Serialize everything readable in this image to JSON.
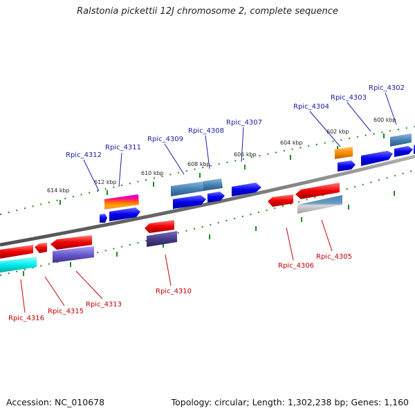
{
  "title": "Ralstonia pickettii 12J chromosome 2, complete sequence",
  "footer": {
    "accession": "Accession: NC_010678",
    "summary": "Topology: circular; Length: 1,302,238 bp; Genes: 1,160"
  },
  "kbp_labels": [
    "614 kbp",
    "612 kbp",
    "610 kbp",
    "608 kbp",
    "606 kbp",
    "604 kbp",
    "602 kbp",
    "600 kbp"
  ],
  "gene_labels_top": [
    "Rpic_4312",
    "Rpic_4311",
    "Rpic_4309",
    "Rpic_4308",
    "Rpic_4307",
    "Rpic_4304",
    "Rpic_4303",
    "Rpic_4302"
  ],
  "gene_labels_bottom": [
    "Rpic_4316",
    "Rpic_4315",
    "Rpic_4313",
    "Rpic_4310",
    "Rpic_4306",
    "Rpic_4305"
  ],
  "colors": {
    "backbone": "#808080",
    "tick": "#1a8a1a",
    "forward_gene": "#0000ee",
    "reverse_gene": "#ee0000",
    "steelblue_gene": "#4682b4",
    "label_top": "#1a1aa6",
    "label_bottom": "#c00000"
  }
}
